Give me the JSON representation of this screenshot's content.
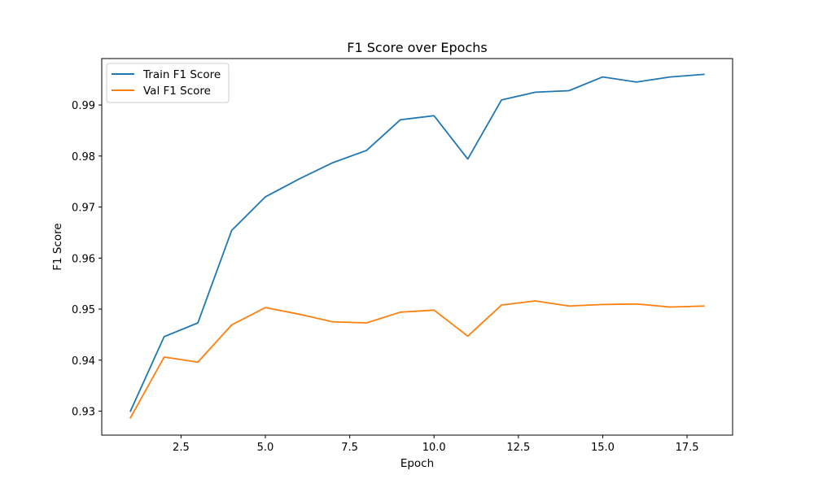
{
  "chart_data": {
    "type": "line",
    "title": "F1 Score over Epochs",
    "xlabel": "Epoch",
    "ylabel": "F1 Score",
    "xlim": [
      0.15,
      18.85
    ],
    "ylim": [
      0.9253,
      0.9991
    ],
    "xticks": [
      2.5,
      5.0,
      7.5,
      10.0,
      12.5,
      15.0,
      17.5
    ],
    "xtick_labels": [
      "2.5",
      "5.0",
      "7.5",
      "10.0",
      "12.5",
      "15.0",
      "17.5"
    ],
    "yticks": [
      0.93,
      0.94,
      0.95,
      0.96,
      0.97,
      0.98,
      0.99
    ],
    "ytick_labels": [
      "0.93",
      "0.94",
      "0.95",
      "0.96",
      "0.97",
      "0.98",
      "0.99"
    ],
    "grid": false,
    "legend_position": "upper-left",
    "x": [
      1,
      2,
      3,
      4,
      5,
      6,
      7,
      8,
      9,
      10,
      11,
      12,
      13,
      14,
      15,
      16,
      17,
      18
    ],
    "series": [
      {
        "name": "Train F1 Score",
        "color": "#1f77b4",
        "values": [
          0.93,
          0.9446,
          0.9473,
          0.9654,
          0.972,
          0.9755,
          0.9787,
          0.9811,
          0.9871,
          0.9879,
          0.9794,
          0.991,
          0.9925,
          0.9928,
          0.9955,
          0.9945,
          0.9955,
          0.996
        ]
      },
      {
        "name": "Val F1 Score",
        "color": "#ff7f0e",
        "values": [
          0.9287,
          0.9406,
          0.9396,
          0.9469,
          0.9503,
          0.949,
          0.9475,
          0.9473,
          0.9494,
          0.9498,
          0.9447,
          0.9508,
          0.9516,
          0.9506,
          0.9509,
          0.951,
          0.9504,
          0.9506
        ]
      }
    ]
  }
}
